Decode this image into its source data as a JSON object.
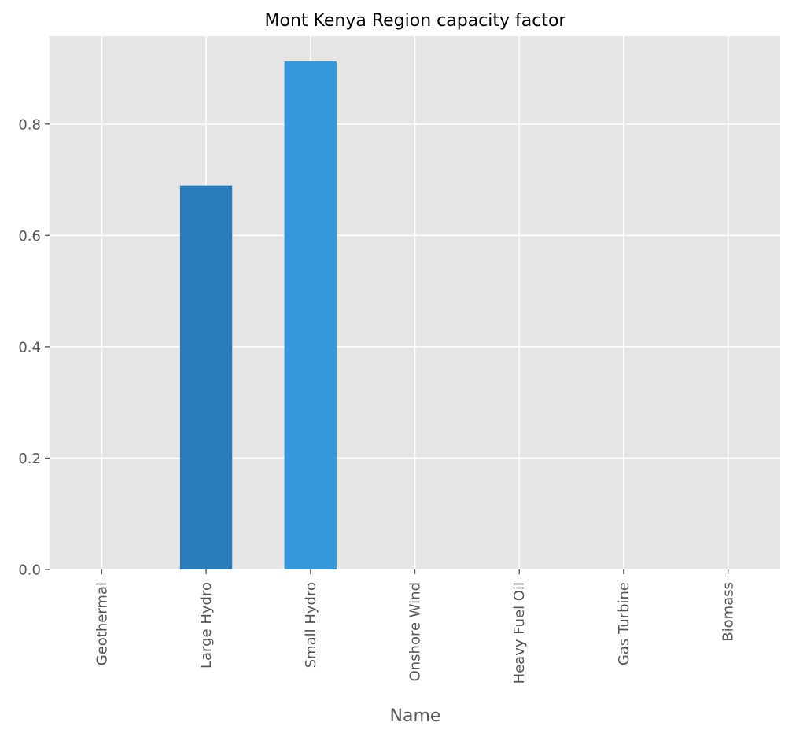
{
  "chart_data": {
    "type": "bar",
    "title": "Mont Kenya Region capacity factor",
    "xlabel": "Name",
    "ylabel": "",
    "categories": [
      "Geothermal",
      "Large Hydro",
      "Small Hydro",
      "Onshore Wind",
      "Heavy Fuel Oil",
      "Gas Turbine",
      "Biomass"
    ],
    "values": [
      0,
      0.69,
      0.913,
      0,
      0,
      0,
      0
    ],
    "bar_colors": [
      "#2a7db8",
      "#2a7db8",
      "#3498db",
      "#2a7db8",
      "#2a7db8",
      "#2a7db8",
      "#2a7db8"
    ],
    "ylim": [
      0,
      0.958
    ],
    "yticks": [
      0.0,
      0.2,
      0.4,
      0.6,
      0.8
    ],
    "ytick_labels": [
      "0.0",
      "0.2",
      "0.4",
      "0.6",
      "0.8"
    ],
    "grid": true,
    "legend": "none",
    "colors": {
      "plot_background": "#e5e5e5",
      "grid": "#ffffff",
      "tick": "#555555"
    }
  }
}
